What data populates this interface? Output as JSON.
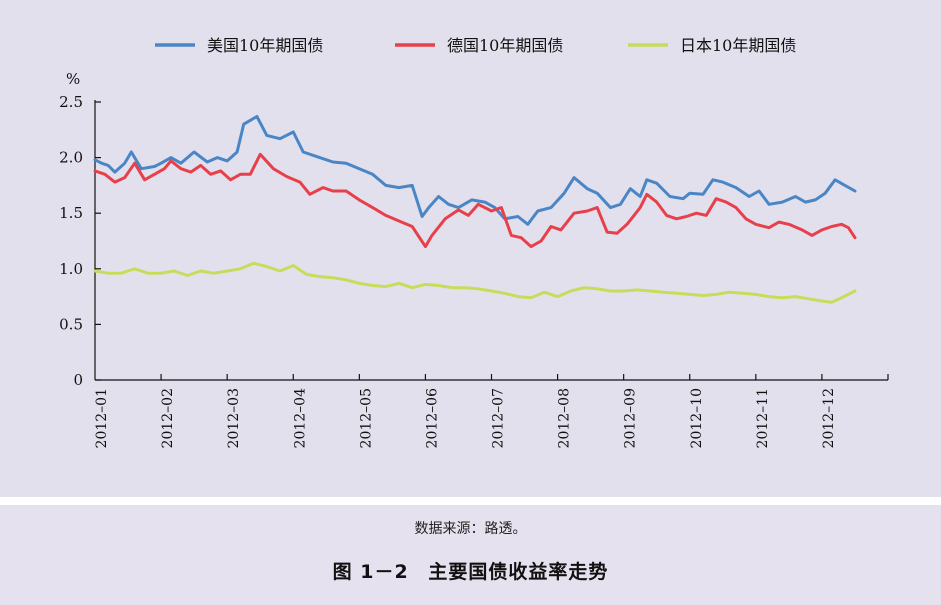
{
  "chart_data": {
    "type": "line",
    "ylabel": "%",
    "ylim": [
      0,
      2.5
    ],
    "yticks": [
      "0",
      "0.5",
      "1.0",
      "1.5",
      "2.0",
      "2.5"
    ],
    "categories": [
      "2012–01",
      "2012–02",
      "2012–03",
      "2012–04",
      "2012–05",
      "2012–06",
      "2012–07",
      "2012–08",
      "2012–09",
      "2012–10",
      "2012–11",
      "2012–12"
    ],
    "legend_position": "top",
    "series": [
      {
        "name": "美国10年期国债",
        "color": "#4a86c6",
        "points": [
          [
            0,
            1.98
          ],
          [
            0.1,
            1.95
          ],
          [
            0.2,
            1.93
          ],
          [
            0.3,
            1.87
          ],
          [
            0.45,
            1.95
          ],
          [
            0.55,
            2.05
          ],
          [
            0.7,
            1.9
          ],
          [
            0.9,
            1.92
          ],
          [
            1.0,
            1.95
          ],
          [
            1.15,
            2.0
          ],
          [
            1.3,
            1.95
          ],
          [
            1.5,
            2.05
          ],
          [
            1.7,
            1.96
          ],
          [
            1.85,
            2.0
          ],
          [
            2.0,
            1.97
          ],
          [
            2.15,
            2.05
          ],
          [
            2.25,
            2.3
          ],
          [
            2.45,
            2.37
          ],
          [
            2.6,
            2.2
          ],
          [
            2.8,
            2.17
          ],
          [
            3.0,
            2.23
          ],
          [
            3.15,
            2.05
          ],
          [
            3.4,
            2.0
          ],
          [
            3.6,
            1.96
          ],
          [
            3.8,
            1.95
          ],
          [
            4.0,
            1.9
          ],
          [
            4.2,
            1.85
          ],
          [
            4.4,
            1.75
          ],
          [
            4.6,
            1.73
          ],
          [
            4.8,
            1.75
          ],
          [
            4.95,
            1.47
          ],
          [
            5.05,
            1.55
          ],
          [
            5.2,
            1.65
          ],
          [
            5.35,
            1.58
          ],
          [
            5.5,
            1.55
          ],
          [
            5.7,
            1.62
          ],
          [
            5.9,
            1.6
          ],
          [
            6.05,
            1.55
          ],
          [
            6.2,
            1.45
          ],
          [
            6.4,
            1.47
          ],
          [
            6.55,
            1.4
          ],
          [
            6.7,
            1.52
          ],
          [
            6.9,
            1.55
          ],
          [
            7.1,
            1.68
          ],
          [
            7.25,
            1.82
          ],
          [
            7.45,
            1.72
          ],
          [
            7.6,
            1.68
          ],
          [
            7.8,
            1.55
          ],
          [
            7.95,
            1.58
          ],
          [
            8.1,
            1.72
          ],
          [
            8.25,
            1.65
          ],
          [
            8.35,
            1.8
          ],
          [
            8.5,
            1.77
          ],
          [
            8.7,
            1.65
          ],
          [
            8.9,
            1.63
          ],
          [
            9.0,
            1.68
          ],
          [
            9.2,
            1.67
          ],
          [
            9.35,
            1.8
          ],
          [
            9.5,
            1.78
          ],
          [
            9.7,
            1.73
          ],
          [
            9.9,
            1.65
          ],
          [
            10.05,
            1.7
          ],
          [
            10.2,
            1.58
          ],
          [
            10.4,
            1.6
          ],
          [
            10.6,
            1.65
          ],
          [
            10.75,
            1.6
          ],
          [
            10.9,
            1.62
          ],
          [
            11.05,
            1.68
          ],
          [
            11.2,
            1.8
          ],
          [
            11.35,
            1.75
          ],
          [
            11.5,
            1.7
          ]
        ]
      },
      {
        "name": "德国10年期国债",
        "color": "#e8404a",
        "points": [
          [
            0,
            1.88
          ],
          [
            0.15,
            1.85
          ],
          [
            0.3,
            1.78
          ],
          [
            0.45,
            1.82
          ],
          [
            0.6,
            1.95
          ],
          [
            0.75,
            1.8
          ],
          [
            0.9,
            1.85
          ],
          [
            1.05,
            1.9
          ],
          [
            1.15,
            1.97
          ],
          [
            1.3,
            1.9
          ],
          [
            1.45,
            1.87
          ],
          [
            1.6,
            1.93
          ],
          [
            1.75,
            1.85
          ],
          [
            1.9,
            1.88
          ],
          [
            2.05,
            1.8
          ],
          [
            2.2,
            1.85
          ],
          [
            2.35,
            1.85
          ],
          [
            2.5,
            2.03
          ],
          [
            2.7,
            1.9
          ],
          [
            2.9,
            1.83
          ],
          [
            3.1,
            1.78
          ],
          [
            3.25,
            1.67
          ],
          [
            3.45,
            1.73
          ],
          [
            3.6,
            1.7
          ],
          [
            3.8,
            1.7
          ],
          [
            4.0,
            1.62
          ],
          [
            4.2,
            1.55
          ],
          [
            4.4,
            1.48
          ],
          [
            4.6,
            1.43
          ],
          [
            4.8,
            1.38
          ],
          [
            5.0,
            1.2
          ],
          [
            5.1,
            1.3
          ],
          [
            5.3,
            1.45
          ],
          [
            5.5,
            1.53
          ],
          [
            5.65,
            1.48
          ],
          [
            5.8,
            1.58
          ],
          [
            6.0,
            1.52
          ],
          [
            6.15,
            1.55
          ],
          [
            6.3,
            1.3
          ],
          [
            6.45,
            1.28
          ],
          [
            6.6,
            1.2
          ],
          [
            6.75,
            1.25
          ],
          [
            6.9,
            1.38
          ],
          [
            7.05,
            1.35
          ],
          [
            7.25,
            1.5
          ],
          [
            7.45,
            1.52
          ],
          [
            7.6,
            1.55
          ],
          [
            7.75,
            1.33
          ],
          [
            7.9,
            1.32
          ],
          [
            8.05,
            1.4
          ],
          [
            8.25,
            1.55
          ],
          [
            8.35,
            1.67
          ],
          [
            8.5,
            1.6
          ],
          [
            8.65,
            1.48
          ],
          [
            8.8,
            1.45
          ],
          [
            8.95,
            1.47
          ],
          [
            9.1,
            1.5
          ],
          [
            9.25,
            1.48
          ],
          [
            9.4,
            1.63
          ],
          [
            9.55,
            1.6
          ],
          [
            9.7,
            1.55
          ],
          [
            9.85,
            1.45
          ],
          [
            10.0,
            1.4
          ],
          [
            10.2,
            1.37
          ],
          [
            10.35,
            1.42
          ],
          [
            10.5,
            1.4
          ],
          [
            10.7,
            1.35
          ],
          [
            10.85,
            1.3
          ],
          [
            11.0,
            1.35
          ],
          [
            11.15,
            1.38
          ],
          [
            11.3,
            1.4
          ],
          [
            11.4,
            1.37
          ],
          [
            11.5,
            1.28
          ]
        ]
      },
      {
        "name": "日本10年期国债",
        "color": "#c8dc5a",
        "points": [
          [
            0,
            0.98
          ],
          [
            0.2,
            0.96
          ],
          [
            0.4,
            0.96
          ],
          [
            0.6,
            1.0
          ],
          [
            0.8,
            0.96
          ],
          [
            1.0,
            0.96
          ],
          [
            1.2,
            0.98
          ],
          [
            1.4,
            0.94
          ],
          [
            1.6,
            0.98
          ],
          [
            1.8,
            0.96
          ],
          [
            2.0,
            0.98
          ],
          [
            2.2,
            1.0
          ],
          [
            2.4,
            1.05
          ],
          [
            2.6,
            1.02
          ],
          [
            2.8,
            0.98
          ],
          [
            3.0,
            1.03
          ],
          [
            3.2,
            0.95
          ],
          [
            3.4,
            0.93
          ],
          [
            3.6,
            0.92
          ],
          [
            3.8,
            0.9
          ],
          [
            4.0,
            0.87
          ],
          [
            4.2,
            0.85
          ],
          [
            4.4,
            0.84
          ],
          [
            4.6,
            0.87
          ],
          [
            4.8,
            0.83
          ],
          [
            5.0,
            0.86
          ],
          [
            5.2,
            0.85
          ],
          [
            5.4,
            0.83
          ],
          [
            5.6,
            0.83
          ],
          [
            5.8,
            0.82
          ],
          [
            6.0,
            0.8
          ],
          [
            6.2,
            0.78
          ],
          [
            6.4,
            0.75
          ],
          [
            6.6,
            0.74
          ],
          [
            6.8,
            0.79
          ],
          [
            7.0,
            0.75
          ],
          [
            7.2,
            0.8
          ],
          [
            7.4,
            0.83
          ],
          [
            7.6,
            0.82
          ],
          [
            7.8,
            0.8
          ],
          [
            8.0,
            0.8
          ],
          [
            8.2,
            0.81
          ],
          [
            8.4,
            0.8
          ],
          [
            8.6,
            0.79
          ],
          [
            8.8,
            0.78
          ],
          [
            9.0,
            0.77
          ],
          [
            9.2,
            0.76
          ],
          [
            9.4,
            0.77
          ],
          [
            9.6,
            0.79
          ],
          [
            9.8,
            0.78
          ],
          [
            10.0,
            0.77
          ],
          [
            10.2,
            0.75
          ],
          [
            10.4,
            0.74
          ],
          [
            10.6,
            0.75
          ],
          [
            10.8,
            0.73
          ],
          [
            11.0,
            0.71
          ],
          [
            11.15,
            0.7
          ],
          [
            11.3,
            0.74
          ],
          [
            11.5,
            0.8
          ]
        ]
      }
    ]
  },
  "caption": {
    "source": "数据来源：路透。",
    "figure_label": "图 1－2",
    "figure_title": "主要国债收益率走势"
  }
}
